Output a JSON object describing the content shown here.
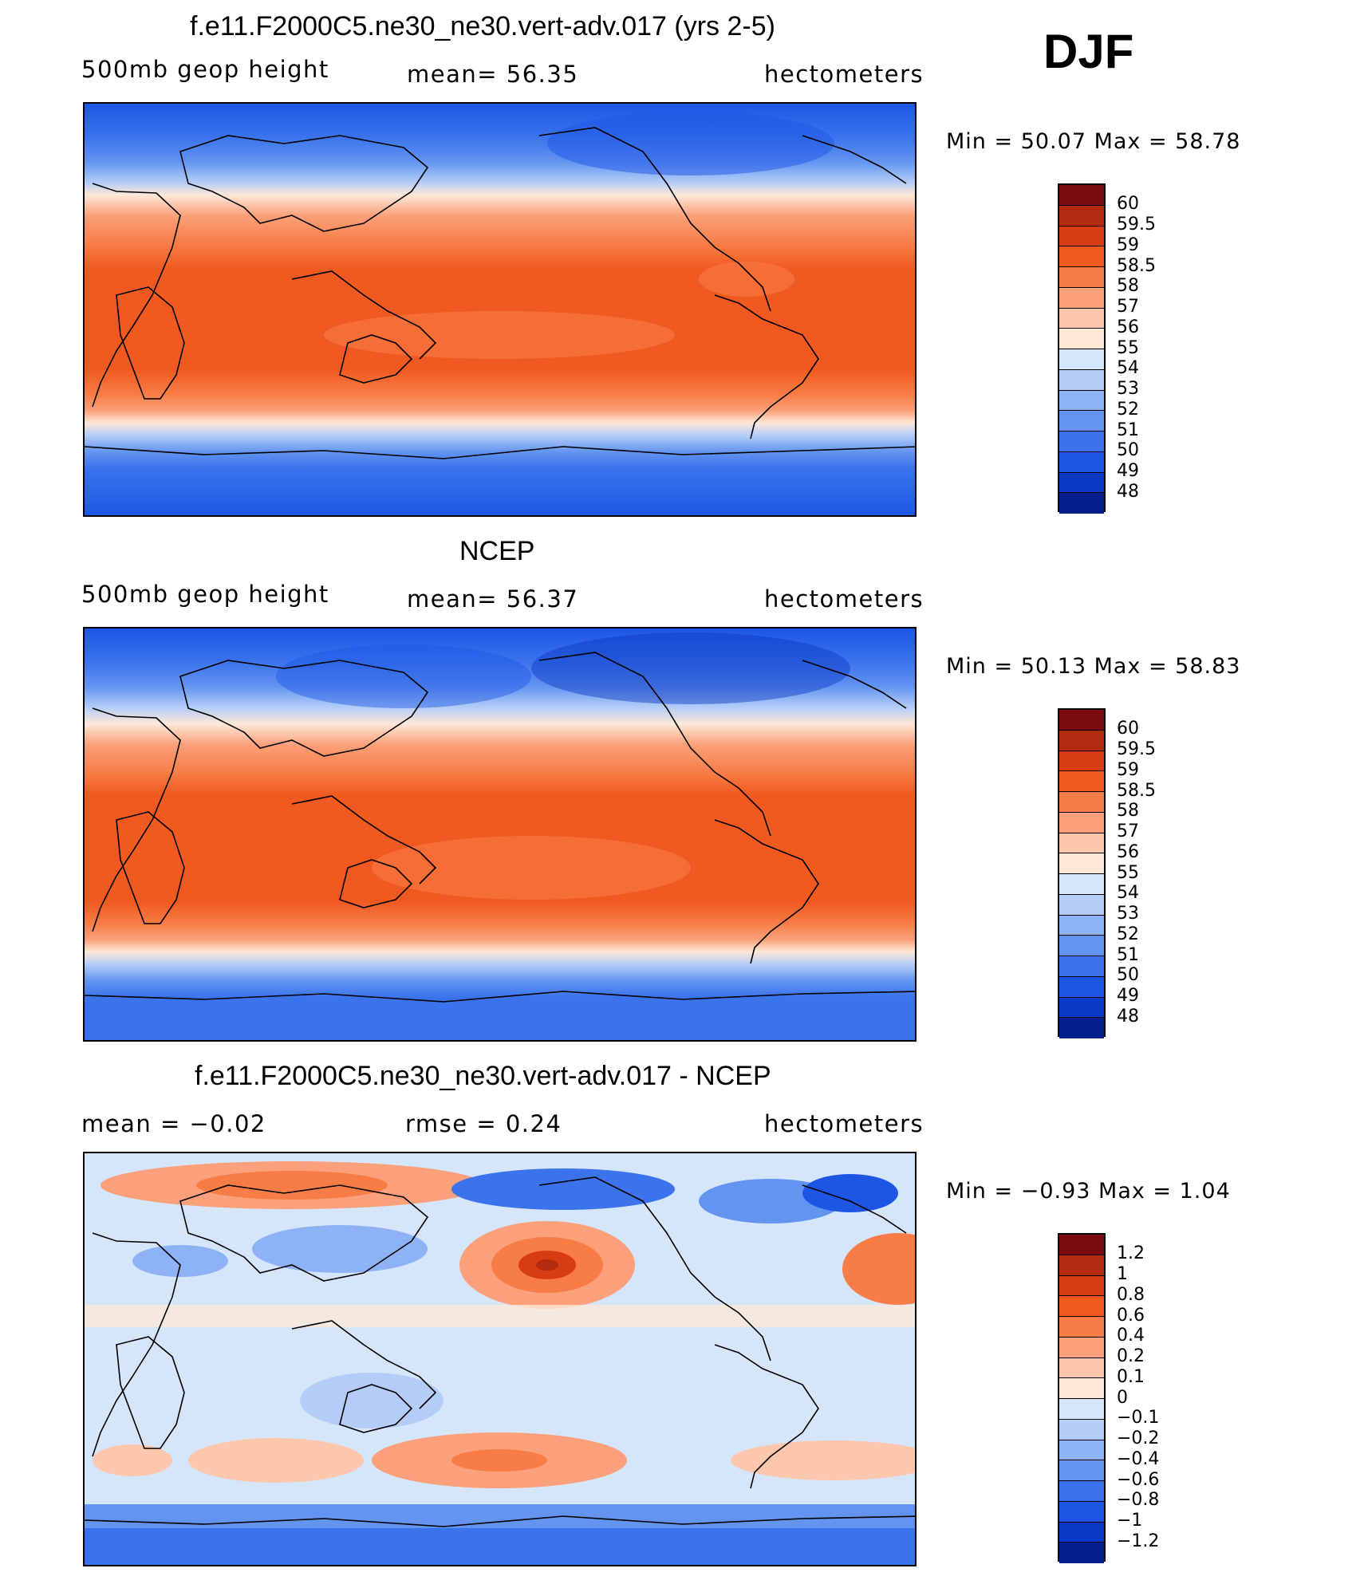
{
  "season": "DJF",
  "panels": [
    {
      "title": "f.e11.F2000C5.ne30_ne30.vert-adv.017 (yrs 2-5)",
      "left_label": "500mb geop height",
      "center_label": "mean=   56.35",
      "units": "hectometers",
      "minmax": "Min =    50.07  Max =    58.78",
      "colorbar_labels": [
        "60",
        "59.5",
        "59",
        "58.5",
        "58",
        "57",
        "56",
        "55",
        "54",
        "53",
        "52",
        "51",
        "50",
        "49",
        "48"
      ]
    },
    {
      "title": "NCEP",
      "left_label": "500mb geop height",
      "center_label": "mean=   56.37",
      "units": "hectometers",
      "minmax": "Min =    50.13  Max =    58.83",
      "colorbar_labels": [
        "60",
        "59.5",
        "59",
        "58.5",
        "58",
        "57",
        "56",
        "55",
        "54",
        "53",
        "52",
        "51",
        "50",
        "49",
        "48"
      ]
    },
    {
      "title": "f.e11.F2000C5.ne30_ne30.vert-adv.017 - NCEP",
      "left_label": "mean =   −0.02",
      "center_label": "rmse =    0.24",
      "units": "hectometers",
      "minmax": "Min =   −0.93  Max =     1.04",
      "colorbar_labels": [
        "1.2",
        "1",
        "0.8",
        "0.6",
        "0.4",
        "0.2",
        "0.1",
        "0",
        "−0.1",
        "−0.2",
        "−0.4",
        "−0.6",
        "−0.8",
        "−1",
        "−1.2"
      ]
    }
  ],
  "colors": {
    "diverging_scale": [
      "#7b0b0e",
      "#b22a10",
      "#d83c12",
      "#f05a20",
      "#f77c45",
      "#fba07a",
      "#fdc7ad",
      "#fde8d8",
      "#d6e6fa",
      "#b3cdf8",
      "#8db2f5",
      "#6394f0",
      "#3a73ec",
      "#1d56e4",
      "#0b38c4",
      "#061f8f"
    ],
    "map_background_bands": "zonal blue-to-red gradient"
  }
}
